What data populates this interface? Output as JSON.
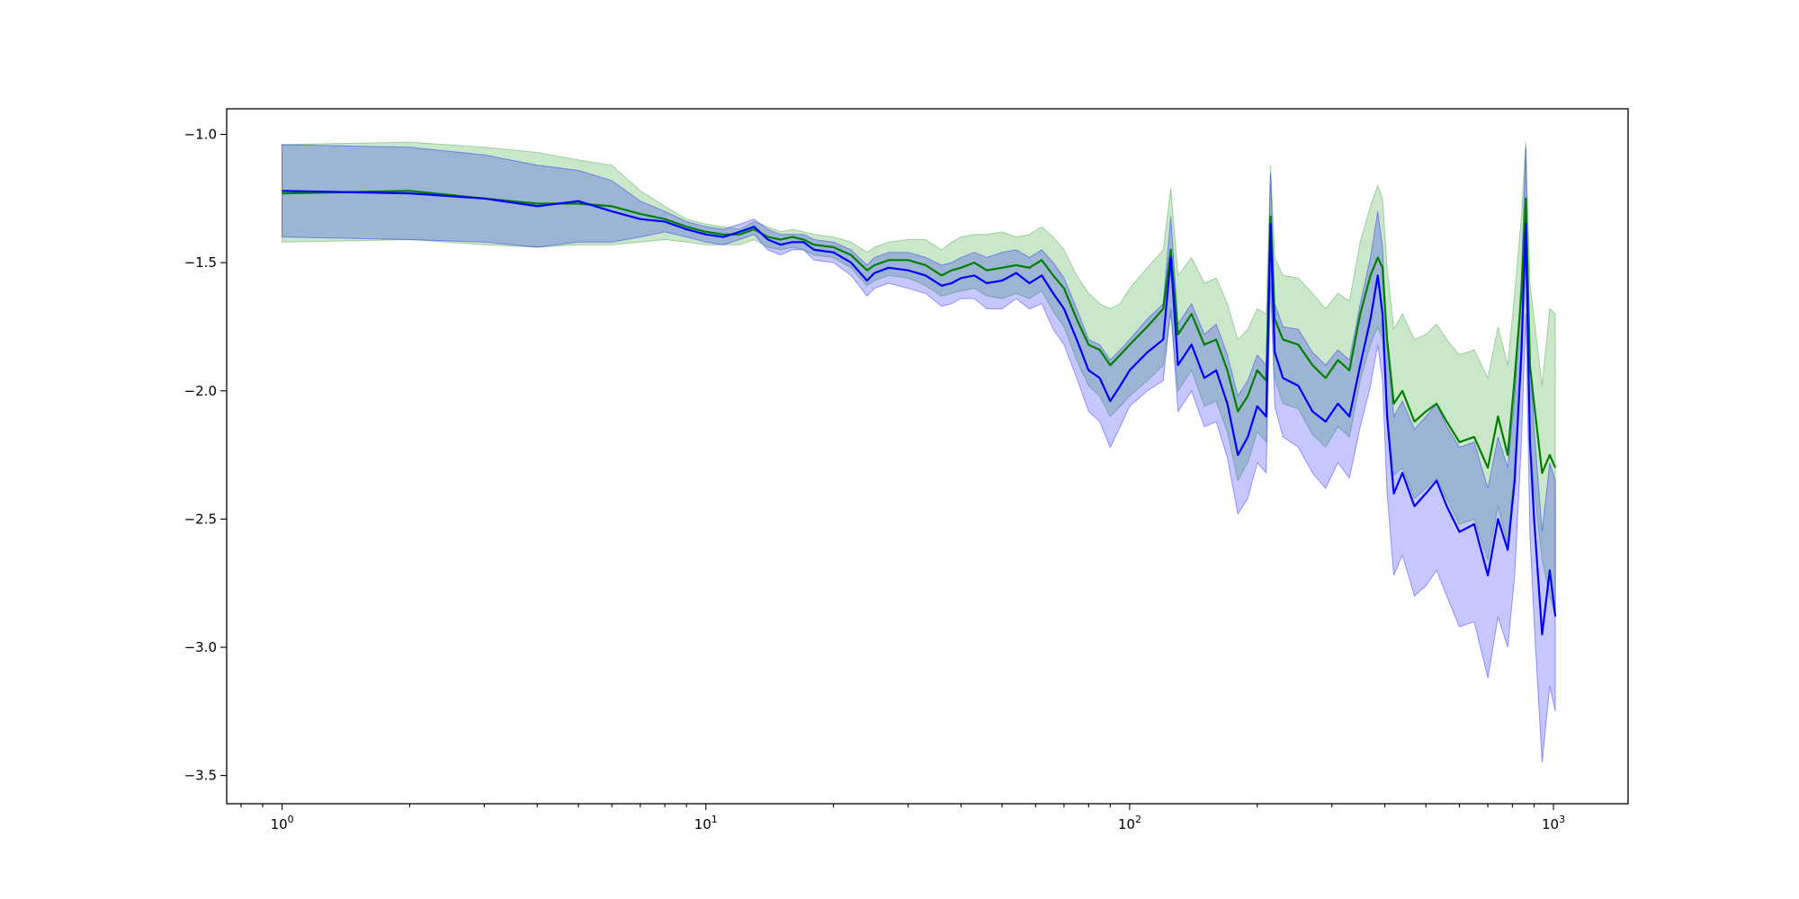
{
  "chart_data": {
    "type": "line",
    "title": "",
    "xlabel": "",
    "ylabel": "",
    "x_scale": "log",
    "xlim": [
      0.74,
      1500
    ],
    "ylim": [
      -3.61,
      -0.9
    ],
    "grid": false,
    "legend": "none",
    "x_ticks": [
      {
        "value": 1,
        "base": "10",
        "exp": "0"
      },
      {
        "value": 10,
        "base": "10",
        "exp": "1"
      },
      {
        "value": 100,
        "base": "10",
        "exp": "2"
      },
      {
        "value": 1000,
        "base": "10",
        "exp": "3"
      }
    ],
    "y_ticks": [
      {
        "value": -1.0,
        "label": "−1.0"
      },
      {
        "value": -1.5,
        "label": "−1.5"
      },
      {
        "value": -2.0,
        "label": "−2.0"
      },
      {
        "value": -2.5,
        "label": "−2.5"
      },
      {
        "value": -3.0,
        "label": "−3.0"
      },
      {
        "value": -3.5,
        "label": "−3.5"
      }
    ],
    "series": [
      {
        "color": "#008000",
        "band_color": "#2ca02c",
        "band_opacity": 0.25,
        "x": [
          1,
          2,
          3,
          4,
          5,
          6,
          7,
          8,
          9,
          10,
          11,
          12,
          13,
          14,
          15,
          16,
          17,
          18,
          20,
          22,
          24,
          25,
          27,
          30,
          33,
          36,
          38,
          40,
          43,
          46,
          50,
          54,
          58,
          62,
          66,
          70,
          75,
          80,
          85,
          90,
          95,
          100,
          110,
          120,
          125,
          130,
          140,
          150,
          160,
          170,
          180,
          190,
          200,
          210,
          215,
          220,
          230,
          250,
          270,
          290,
          310,
          330,
          350,
          370,
          385,
          395,
          405,
          420,
          440,
          470,
          500,
          530,
          560,
          600,
          650,
          700,
          740,
          780,
          810,
          840,
          860,
          880,
          900,
          940,
          980,
          1010
        ],
        "y": [
          -1.23,
          -1.22,
          -1.25,
          -1.27,
          -1.27,
          -1.28,
          -1.31,
          -1.33,
          -1.36,
          -1.38,
          -1.39,
          -1.39,
          -1.37,
          -1.4,
          -1.41,
          -1.4,
          -1.41,
          -1.43,
          -1.44,
          -1.47,
          -1.53,
          -1.51,
          -1.49,
          -1.49,
          -1.51,
          -1.55,
          -1.53,
          -1.52,
          -1.5,
          -1.53,
          -1.52,
          -1.51,
          -1.52,
          -1.49,
          -1.55,
          -1.6,
          -1.72,
          -1.82,
          -1.84,
          -1.9,
          -1.86,
          -1.82,
          -1.75,
          -1.68,
          -1.45,
          -1.78,
          -1.7,
          -1.82,
          -1.8,
          -1.92,
          -2.08,
          -2.02,
          -1.92,
          -1.96,
          -1.32,
          -1.72,
          -1.8,
          -1.82,
          -1.9,
          -1.95,
          -1.88,
          -1.92,
          -1.7,
          -1.55,
          -1.48,
          -1.52,
          -1.8,
          -2.05,
          -2.0,
          -2.12,
          -2.08,
          -2.05,
          -2.12,
          -2.2,
          -2.18,
          -2.3,
          -2.1,
          -2.25,
          -1.95,
          -1.62,
          -1.25,
          -1.9,
          -2.05,
          -2.32,
          -2.25,
          -2.3
        ],
        "y_upper": [
          -1.04,
          -1.03,
          -1.05,
          -1.07,
          -1.1,
          -1.12,
          -1.22,
          -1.28,
          -1.33,
          -1.35,
          -1.36,
          -1.37,
          -1.34,
          -1.36,
          -1.38,
          -1.37,
          -1.38,
          -1.39,
          -1.4,
          -1.42,
          -1.46,
          -1.44,
          -1.42,
          -1.41,
          -1.41,
          -1.45,
          -1.42,
          -1.4,
          -1.39,
          -1.39,
          -1.38,
          -1.4,
          -1.39,
          -1.36,
          -1.4,
          -1.45,
          -1.55,
          -1.62,
          -1.66,
          -1.68,
          -1.66,
          -1.6,
          -1.52,
          -1.45,
          -1.21,
          -1.55,
          -1.48,
          -1.58,
          -1.56,
          -1.66,
          -1.8,
          -1.76,
          -1.68,
          -1.7,
          -1.12,
          -1.48,
          -1.55,
          -1.56,
          -1.62,
          -1.68,
          -1.62,
          -1.65,
          -1.42,
          -1.28,
          -1.2,
          -1.25,
          -1.52,
          -1.76,
          -1.7,
          -1.8,
          -1.78,
          -1.74,
          -1.8,
          -1.86,
          -1.84,
          -1.95,
          -1.75,
          -1.9,
          -1.62,
          -1.32,
          -1.03,
          -1.58,
          -1.72,
          -1.98,
          -1.68,
          -1.7
        ],
        "y_lower": [
          -1.42,
          -1.41,
          -1.43,
          -1.44,
          -1.43,
          -1.43,
          -1.42,
          -1.41,
          -1.42,
          -1.43,
          -1.43,
          -1.43,
          -1.41,
          -1.44,
          -1.45,
          -1.44,
          -1.45,
          -1.47,
          -1.48,
          -1.52,
          -1.59,
          -1.57,
          -1.55,
          -1.56,
          -1.59,
          -1.63,
          -1.62,
          -1.61,
          -1.6,
          -1.63,
          -1.64,
          -1.62,
          -1.64,
          -1.61,
          -1.69,
          -1.75,
          -1.88,
          -1.98,
          -2.02,
          -2.1,
          -2.06,
          -2.02,
          -1.96,
          -1.9,
          -1.7,
          -2.0,
          -1.92,
          -2.06,
          -2.04,
          -2.16,
          -2.35,
          -2.28,
          -2.16,
          -2.2,
          -1.52,
          -1.95,
          -2.05,
          -2.07,
          -2.17,
          -2.22,
          -2.14,
          -2.18,
          -1.96,
          -1.82,
          -1.75,
          -1.8,
          -2.07,
          -2.33,
          -2.3,
          -2.42,
          -2.38,
          -2.34,
          -2.42,
          -2.52,
          -2.5,
          -2.66,
          -2.45,
          -2.6,
          -2.28,
          -1.92,
          -1.45,
          -2.2,
          -2.38,
          -2.66,
          -2.8,
          -2.88
        ]
      },
      {
        "color": "#0000ff",
        "band_color": "#0000ff",
        "band_opacity": 0.22,
        "x": [
          1,
          2,
          3,
          4,
          5,
          6,
          7,
          8,
          9,
          10,
          11,
          12,
          13,
          14,
          15,
          16,
          17,
          18,
          20,
          22,
          24,
          25,
          27,
          30,
          33,
          36,
          38,
          40,
          43,
          46,
          50,
          54,
          58,
          62,
          66,
          70,
          75,
          80,
          85,
          90,
          95,
          100,
          110,
          120,
          125,
          130,
          140,
          150,
          160,
          170,
          180,
          190,
          200,
          210,
          215,
          220,
          230,
          250,
          270,
          290,
          310,
          330,
          350,
          370,
          385,
          395,
          405,
          420,
          440,
          470,
          500,
          530,
          560,
          600,
          650,
          700,
          740,
          780,
          810,
          840,
          860,
          880,
          900,
          940,
          980,
          1010
        ],
        "y": [
          -1.22,
          -1.23,
          -1.25,
          -1.28,
          -1.26,
          -1.3,
          -1.33,
          -1.34,
          -1.37,
          -1.39,
          -1.4,
          -1.38,
          -1.36,
          -1.41,
          -1.43,
          -1.42,
          -1.42,
          -1.45,
          -1.46,
          -1.5,
          -1.57,
          -1.54,
          -1.52,
          -1.53,
          -1.55,
          -1.59,
          -1.58,
          -1.56,
          -1.55,
          -1.58,
          -1.57,
          -1.54,
          -1.58,
          -1.55,
          -1.62,
          -1.68,
          -1.8,
          -1.92,
          -1.95,
          -2.04,
          -1.98,
          -1.92,
          -1.85,
          -1.8,
          -1.48,
          -1.9,
          -1.82,
          -1.95,
          -1.92,
          -2.05,
          -2.25,
          -2.18,
          -2.06,
          -2.1,
          -1.35,
          -1.85,
          -1.95,
          -1.98,
          -2.08,
          -2.12,
          -2.05,
          -2.1,
          -1.9,
          -1.72,
          -1.55,
          -1.7,
          -2.1,
          -2.4,
          -2.32,
          -2.45,
          -2.4,
          -2.35,
          -2.45,
          -2.55,
          -2.52,
          -2.72,
          -2.5,
          -2.62,
          -2.35,
          -1.85,
          -1.35,
          -2.2,
          -2.5,
          -2.95,
          -2.7,
          -2.88
        ],
        "y_upper": [
          -1.04,
          -1.05,
          -1.08,
          -1.12,
          -1.14,
          -1.18,
          -1.26,
          -1.3,
          -1.34,
          -1.36,
          -1.37,
          -1.35,
          -1.33,
          -1.37,
          -1.39,
          -1.39,
          -1.39,
          -1.41,
          -1.42,
          -1.45,
          -1.51,
          -1.48,
          -1.46,
          -1.46,
          -1.48,
          -1.51,
          -1.5,
          -1.48,
          -1.46,
          -1.48,
          -1.46,
          -1.45,
          -1.48,
          -1.45,
          -1.5,
          -1.56,
          -1.68,
          -1.8,
          -1.82,
          -1.88,
          -1.84,
          -1.8,
          -1.72,
          -1.66,
          -1.32,
          -1.74,
          -1.66,
          -1.78,
          -1.74,
          -1.86,
          -2.02,
          -1.96,
          -1.86,
          -1.9,
          -1.15,
          -1.66,
          -1.75,
          -1.76,
          -1.85,
          -1.9,
          -1.84,
          -1.88,
          -1.66,
          -1.48,
          -1.3,
          -1.44,
          -1.82,
          -2.1,
          -2.04,
          -2.15,
          -2.1,
          -2.05,
          -2.14,
          -2.22,
          -2.2,
          -2.38,
          -2.18,
          -2.3,
          -2.02,
          -1.55,
          -1.05,
          -1.88,
          -2.15,
          -2.55,
          -2.28,
          -2.35
        ],
        "y_lower": [
          -1.4,
          -1.41,
          -1.42,
          -1.44,
          -1.42,
          -1.42,
          -1.4,
          -1.38,
          -1.4,
          -1.42,
          -1.43,
          -1.41,
          -1.39,
          -1.45,
          -1.47,
          -1.45,
          -1.45,
          -1.49,
          -1.5,
          -1.55,
          -1.63,
          -1.6,
          -1.58,
          -1.6,
          -1.62,
          -1.67,
          -1.66,
          -1.64,
          -1.64,
          -1.68,
          -1.68,
          -1.64,
          -1.68,
          -1.66,
          -1.76,
          -1.82,
          -1.95,
          -2.08,
          -2.12,
          -2.22,
          -2.14,
          -2.06,
          -2.0,
          -1.96,
          -1.68,
          -2.08,
          -2.0,
          -2.14,
          -2.12,
          -2.26,
          -2.48,
          -2.42,
          -2.28,
          -2.32,
          -1.58,
          -2.06,
          -2.18,
          -2.22,
          -2.32,
          -2.38,
          -2.28,
          -2.34,
          -2.14,
          -1.98,
          -1.82,
          -1.96,
          -2.4,
          -2.72,
          -2.64,
          -2.8,
          -2.76,
          -2.7,
          -2.8,
          -2.92,
          -2.9,
          -3.12,
          -2.88,
          -3.0,
          -2.72,
          -2.2,
          -1.7,
          -2.56,
          -2.9,
          -3.45,
          -3.15,
          -3.25
        ]
      }
    ]
  }
}
